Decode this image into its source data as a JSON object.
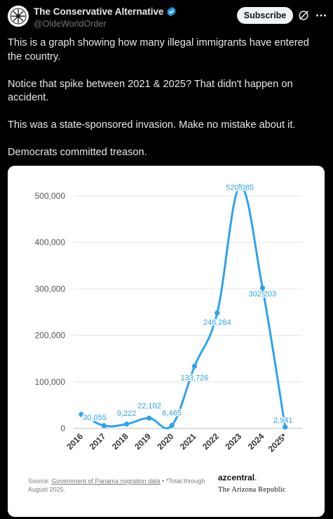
{
  "author": {
    "display_name": "The Conservative Alternative",
    "handle": "@OldeWorldOrder"
  },
  "subscribe_label": "Subscribe",
  "post_text": [
    "This is a graph showing how many illegal immigrants have entered the country.",
    "Notice that spike between 2021 & 2025? That didn't happen on accident.",
    "This was a state-sponsored invasion. Make no mistake about it.",
    "Democrats committed treason."
  ],
  "icons": {
    "verified": "verified-badge-icon",
    "grok": "grok-icon",
    "more": "more-icon",
    "avatar": "avatar"
  },
  "colors": {
    "background": "#000000",
    "text": "#e7e9ea",
    "muted": "#71767b",
    "verified": "#1d9bf0",
    "line": "#2ea3ec",
    "label": "#2ea3ec"
  },
  "chart_data": {
    "type": "line",
    "categories": [
      "2016",
      "2017",
      "2018",
      "2019",
      "2020",
      "2021",
      "2022",
      "2023",
      "2024",
      "2025*"
    ],
    "values": [
      30055,
      6000,
      9222,
      22102,
      6465,
      133726,
      248284,
      520085,
      302203,
      2941
    ],
    "data_labels": [
      "30,055",
      "",
      "9,222",
      "22,102",
      "6,465",
      "133,726",
      "248,284",
      "520,085",
      "302,203",
      "2,941"
    ],
    "y_ticks": [
      "0",
      "100,000",
      "200,000",
      "300,000",
      "400,000",
      "500,000"
    ],
    "ylim": [
      0,
      530000
    ],
    "grid": true,
    "title": "",
    "xlabel": "",
    "ylabel": ""
  },
  "source": {
    "prefix": "Source: ",
    "link": "Government of Panama migration data",
    "suffix": " • *Total through August 2025."
  },
  "branding": {
    "azcentral": "azcentral",
    "azcentral_dot": ".",
    "republic": "The Arizona Republic"
  }
}
